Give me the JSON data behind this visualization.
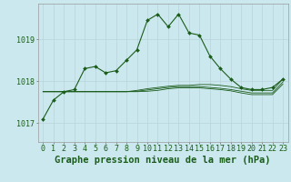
{
  "title": "Graphe pression niveau de la mer (hPa)",
  "background_color": "#cce8ef",
  "grid_color": "#b8d4da",
  "line_color": "#1a5c1a",
  "marker_color": "#1a5c1a",
  "ylim": [
    1016.55,
    1019.85
  ],
  "xlim": [
    -0.5,
    23.5
  ],
  "yticks": [
    1017,
    1018,
    1019
  ],
  "xtick_labels": [
    "0",
    "1",
    "2",
    "3",
    "4",
    "5",
    "6",
    "7",
    "8",
    "9",
    "10",
    "11",
    "12",
    "13",
    "14",
    "15",
    "16",
    "17",
    "18",
    "19",
    "20",
    "21",
    "22",
    "23"
  ],
  "main_series": [
    1017.1,
    1017.55,
    1017.75,
    1017.8,
    1018.3,
    1018.35,
    1018.2,
    1018.25,
    1018.5,
    1018.75,
    1019.45,
    1019.6,
    1019.3,
    1019.6,
    1019.15,
    1019.1,
    1018.6,
    1018.3,
    1018.05,
    1017.85,
    1017.8,
    1017.8,
    1017.85,
    1018.05
  ],
  "flat_series_1": [
    1017.75,
    1017.75,
    1017.75,
    1017.75,
    1017.75,
    1017.75,
    1017.75,
    1017.75,
    1017.75,
    1017.78,
    1017.82,
    1017.85,
    1017.88,
    1017.9,
    1017.9,
    1017.92,
    1017.92,
    1017.9,
    1017.87,
    1017.82,
    1017.78,
    1017.78,
    1017.78,
    1018.05
  ],
  "flat_series_2": [
    1017.75,
    1017.75,
    1017.75,
    1017.75,
    1017.75,
    1017.75,
    1017.75,
    1017.75,
    1017.75,
    1017.76,
    1017.79,
    1017.82,
    1017.85,
    1017.87,
    1017.87,
    1017.87,
    1017.85,
    1017.83,
    1017.8,
    1017.76,
    1017.72,
    1017.72,
    1017.72,
    1017.98
  ],
  "flat_series_3": [
    1017.75,
    1017.75,
    1017.75,
    1017.75,
    1017.75,
    1017.75,
    1017.75,
    1017.75,
    1017.75,
    1017.75,
    1017.76,
    1017.78,
    1017.82,
    1017.84,
    1017.84,
    1017.84,
    1017.82,
    1017.8,
    1017.77,
    1017.72,
    1017.68,
    1017.68,
    1017.68,
    1017.93
  ],
  "tick_fontsize": 6,
  "xlabel_fontsize": 7.5
}
